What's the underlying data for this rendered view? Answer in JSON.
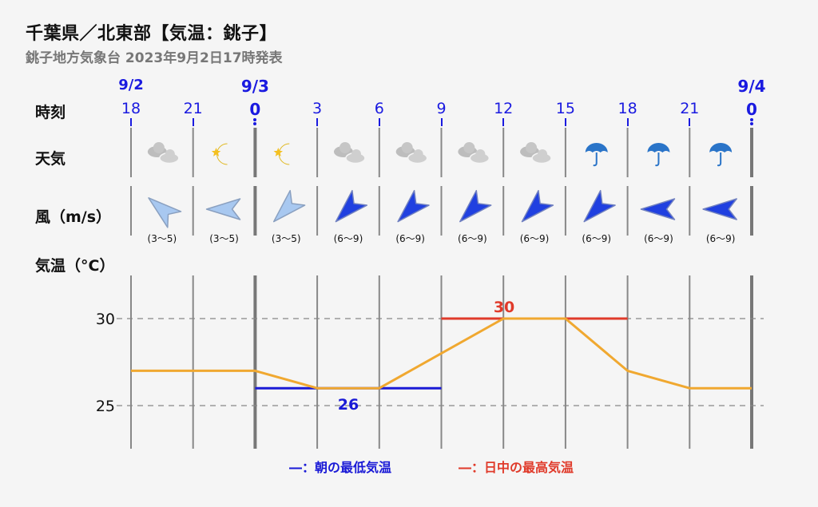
{
  "header": {
    "title": "千葉県／北東部【気温：銚子】",
    "subtitle": "銚子地方気象台 2023年9月2日17時発表"
  },
  "rows": {
    "time": "時刻",
    "weather": "天気",
    "wind": "風（m/s）",
    "temp": "気温（°C）"
  },
  "days": [
    {
      "label": "9/2",
      "col": 0,
      "bold": false
    },
    {
      "label": "9/3",
      "col": 2,
      "bold": true
    },
    {
      "label": "9/4",
      "col": 10,
      "bold": true
    }
  ],
  "hours": [
    "18",
    "21",
    "0",
    "3",
    "6",
    "9",
    "12",
    "15",
    "18",
    "21",
    "0"
  ],
  "bold_hours": [
    2,
    10
  ],
  "weather": [
    "cloudy-icon",
    "moon-icon",
    "moon-icon",
    "cloudy-icon",
    "cloudy-icon",
    "cloudy-icon",
    "cloudy-icon",
    "umbrella-icon",
    "umbrella-icon",
    "umbrella-icon"
  ],
  "wind": [
    {
      "dir": "southeast",
      "strength": "light",
      "speed": "(3～5)"
    },
    {
      "dir": "east",
      "strength": "light",
      "speed": "(3～5)"
    },
    {
      "dir": "northeast",
      "strength": "light",
      "speed": "(3～5)"
    },
    {
      "dir": "northeast",
      "strength": "strong",
      "speed": "(6～9)"
    },
    {
      "dir": "northeast",
      "strength": "strong",
      "speed": "(6～9)"
    },
    {
      "dir": "northeast",
      "strength": "strong",
      "speed": "(6～9)"
    },
    {
      "dir": "northeast",
      "strength": "strong",
      "speed": "(6～9)"
    },
    {
      "dir": "northeast",
      "strength": "strong",
      "speed": "(6～9)"
    },
    {
      "dir": "east",
      "strength": "strong",
      "speed": "(6～9)"
    },
    {
      "dir": "east",
      "strength": "strong",
      "speed": "(6～9)"
    }
  ],
  "colors": {
    "line": "#f0a830",
    "min": "#1a1ad6",
    "max": "#e03a2a",
    "blue_text": "#1a1ae0",
    "wind_light": "#a8c8f0",
    "wind_strong": "#2040e0"
  },
  "chart_data": {
    "type": "line",
    "x": [
      "18",
      "21",
      "0",
      "3",
      "6",
      "9",
      "12",
      "15",
      "18",
      "21",
      "0"
    ],
    "y": [
      27,
      27,
      27,
      26,
      26,
      28,
      30,
      30,
      27,
      26,
      26
    ],
    "ylim": [
      23,
      32
    ],
    "yticks": [
      25,
      30
    ],
    "grid": true,
    "min_temp": {
      "value": 26,
      "label": "26",
      "from": "0",
      "to": "9"
    },
    "max_temp": {
      "value": 30,
      "label": "30",
      "from": "9",
      "to": "18"
    },
    "legend": [
      {
        "name": "―：朝の最低気温",
        "color": "#1a1ad6"
      },
      {
        "name": "―：日中の最高気温",
        "color": "#e03a2a"
      }
    ]
  }
}
